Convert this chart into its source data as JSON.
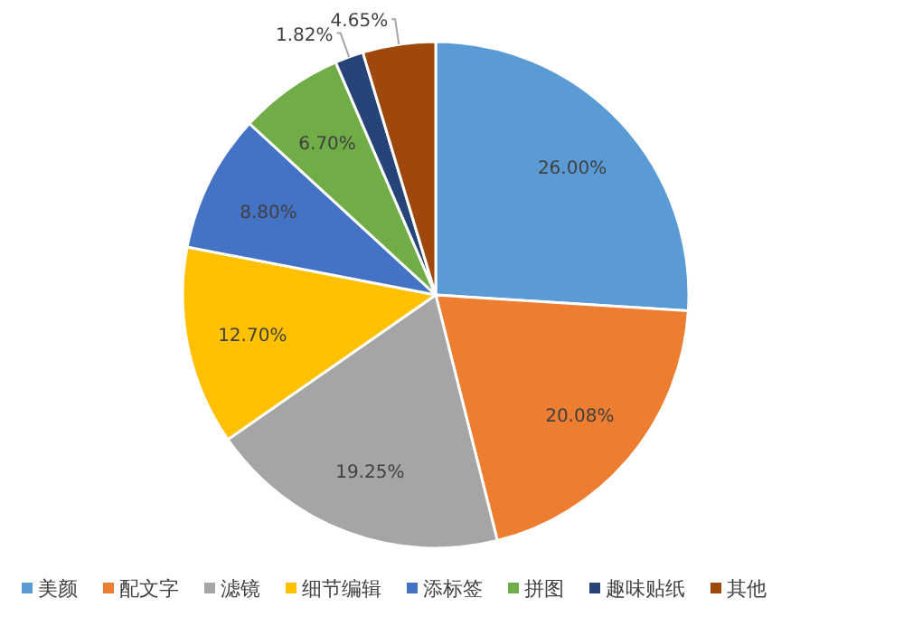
{
  "chart_data": {
    "type": "pie",
    "categories": [
      "美颜",
      "配文字",
      "滤镜",
      "细节编辑",
      "添标签",
      "拼图",
      "趣味贴纸",
      "其他"
    ],
    "values": [
      26.0,
      20.08,
      19.25,
      12.7,
      8.8,
      6.7,
      1.82,
      4.65
    ],
    "value_labels": [
      "26.00%",
      "20.08%",
      "19.25%",
      "12.70%",
      "8.80%",
      "6.70%",
      "1.82%",
      "4.65%"
    ],
    "colors": [
      "#5b9bd5",
      "#ed7d31",
      "#a5a5a5",
      "#ffc000",
      "#4472c4",
      "#70ad47",
      "#264478",
      "#9e480e"
    ],
    "legend": "bottom"
  }
}
